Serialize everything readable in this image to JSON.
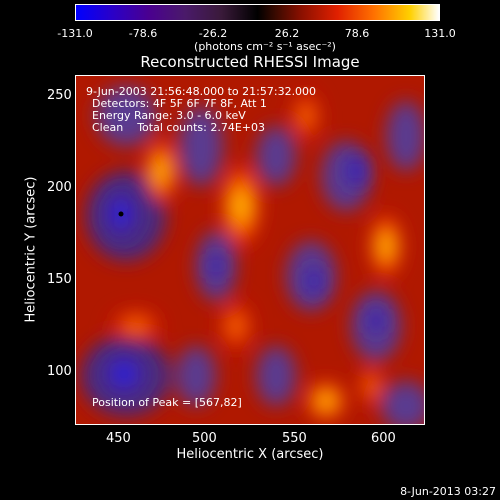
{
  "colorbar": {
    "ticks": [
      "-131.0",
      "-78.6",
      "-26.2",
      "26.2",
      "78.6",
      "131.0"
    ],
    "units": "(photons cm⁻² s⁻¹ asec⁻²)"
  },
  "plot": {
    "title": "Reconstructed RHESSI Image",
    "time_range": "9-Jun-2003 21:56:48.000 to 21:57:32.000",
    "detectors": "Detectors: 4F 5F 6F 7F 8F, Att 1",
    "energy": "Energy Range: 3.0 - 6.0 keV",
    "clean": "Clean    Total counts: 2.74E+03",
    "peak": "Position of Peak = [567,82]"
  },
  "axes": {
    "xlabel": "Heliocentric X (arcsec)",
    "ylabel": "Heliocentric Y (arcsec)",
    "xticks": [
      "450",
      "500",
      "550",
      "600"
    ],
    "yticks": [
      "250",
      "200",
      "150",
      "100"
    ]
  },
  "footer": {
    "date": "8-Jun-2013 03:27"
  },
  "colors": {
    "background": "#000000",
    "text": "#ffffff"
  }
}
